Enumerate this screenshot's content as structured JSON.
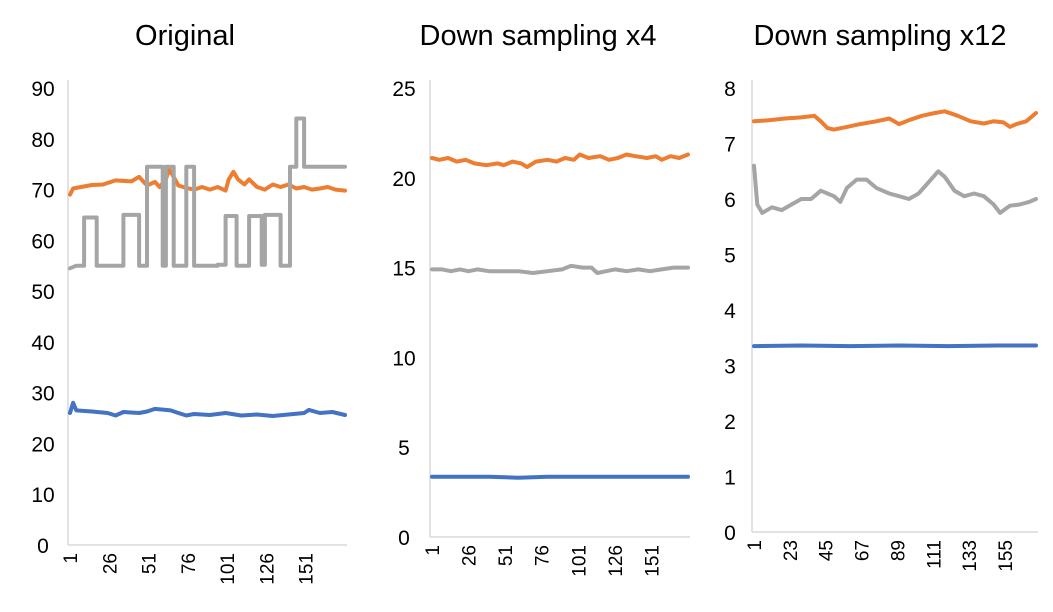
{
  "chart_data": [
    {
      "type": "line",
      "title": "Original",
      "ylim": [
        0,
        90
      ],
      "yticks": [
        0,
        10,
        20,
        30,
        40,
        50,
        60,
        70,
        80,
        90
      ],
      "x_range": [
        1,
        176
      ],
      "xticks": [
        1,
        26,
        51,
        76,
        101,
        126,
        151
      ],
      "grid": false,
      "series": [
        {
          "color": "#ED7D31",
          "points": [
            [
              1,
              69.0
            ],
            [
              3,
              70.2
            ],
            [
              8,
              70.5
            ],
            [
              15,
              70.9
            ],
            [
              22,
              71.0
            ],
            [
              30,
              71.8
            ],
            [
              40,
              71.6
            ],
            [
              45,
              72.5
            ],
            [
              50,
              70.8
            ],
            [
              55,
              71.5
            ],
            [
              58,
              70.5
            ],
            [
              62,
              72.0
            ],
            [
              64,
              74.0
            ],
            [
              67,
              72.5
            ],
            [
              70,
              70.8
            ],
            [
              75,
              70.3
            ],
            [
              80,
              70.0
            ],
            [
              85,
              70.5
            ],
            [
              90,
              70.0
            ],
            [
              95,
              70.5
            ],
            [
              100,
              69.8
            ],
            [
              102,
              72.0
            ],
            [
              105,
              73.5
            ],
            [
              108,
              72.0
            ],
            [
              112,
              71.0
            ],
            [
              115,
              72.0
            ],
            [
              120,
              70.5
            ],
            [
              125,
              70.0
            ],
            [
              130,
              71.0
            ],
            [
              135,
              70.5
            ],
            [
              140,
              71.0
            ],
            [
              145,
              70.2
            ],
            [
              150,
              70.5
            ],
            [
              155,
              70.0
            ],
            [
              160,
              70.2
            ],
            [
              165,
              70.5
            ],
            [
              170,
              70.0
            ],
            [
              176,
              69.8
            ]
          ]
        },
        {
          "color": "#A5A5A5",
          "points": [
            [
              1,
              54.5
            ],
            [
              5,
              55.0
            ],
            [
              10,
              55.0
            ],
            [
              10,
              64.5
            ],
            [
              18,
              64.5
            ],
            [
              18,
              55.0
            ],
            [
              35,
              55.0
            ],
            [
              35,
              65.0
            ],
            [
              45,
              65.0
            ],
            [
              45,
              55.0
            ],
            [
              50,
              55.0
            ],
            [
              50,
              74.5
            ],
            [
              60,
              74.5
            ],
            [
              60,
              55.0
            ],
            [
              62,
              55.0
            ],
            [
              62,
              74.5
            ],
            [
              67,
              74.5
            ],
            [
              67,
              55.0
            ],
            [
              75,
              55.0
            ],
            [
              75,
              74.5
            ],
            [
              80,
              74.5
            ],
            [
              80,
              55.0
            ],
            [
              95,
              55.0
            ],
            [
              95,
              55.2
            ],
            [
              100,
              55.2
            ],
            [
              100,
              64.8
            ],
            [
              107,
              64.8
            ],
            [
              107,
              55.0
            ],
            [
              115,
              55.0
            ],
            [
              115,
              64.8
            ],
            [
              123,
              64.8
            ],
            [
              123,
              55.2
            ],
            [
              125,
              55.2
            ],
            [
              125,
              65.0
            ],
            [
              135,
              65.0
            ],
            [
              135,
              55.0
            ],
            [
              141,
              55.0
            ],
            [
              141,
              74.5
            ],
            [
              145,
              74.5
            ],
            [
              145,
              84.0
            ],
            [
              150,
              84.0
            ],
            [
              150,
              74.5
            ],
            [
              176,
              74.5
            ]
          ]
        },
        {
          "color": "#4472C4",
          "points": [
            [
              1,
              26.0
            ],
            [
              3,
              28.0
            ],
            [
              5,
              26.5
            ],
            [
              15,
              26.3
            ],
            [
              25,
              26.0
            ],
            [
              30,
              25.5
            ],
            [
              35,
              26.2
            ],
            [
              45,
              26.0
            ],
            [
              50,
              26.3
            ],
            [
              55,
              26.8
            ],
            [
              65,
              26.5
            ],
            [
              70,
              26.0
            ],
            [
              75,
              25.5
            ],
            [
              80,
              25.8
            ],
            [
              90,
              25.6
            ],
            [
              100,
              26.0
            ],
            [
              110,
              25.5
            ],
            [
              120,
              25.7
            ],
            [
              130,
              25.4
            ],
            [
              140,
              25.7
            ],
            [
              150,
              26.0
            ],
            [
              153,
              26.6
            ],
            [
              160,
              26.0
            ],
            [
              168,
              26.2
            ],
            [
              176,
              25.6
            ]
          ]
        }
      ]
    },
    {
      "type": "line",
      "title": "Down sampling x4",
      "ylim": [
        0,
        25
      ],
      "yticks": [
        0,
        5,
        10,
        15,
        20,
        25
      ],
      "x_range": [
        1,
        176
      ],
      "xticks": [
        1,
        26,
        51,
        76,
        101,
        126,
        151
      ],
      "grid": false,
      "series": [
        {
          "color": "#ED7D31",
          "points": [
            [
              1,
              21.1
            ],
            [
              6,
              21.0
            ],
            [
              12,
              21.1
            ],
            [
              18,
              20.9
            ],
            [
              24,
              21.0
            ],
            [
              30,
              20.8
            ],
            [
              38,
              20.7
            ],
            [
              46,
              20.8
            ],
            [
              50,
              20.7
            ],
            [
              56,
              20.9
            ],
            [
              62,
              20.8
            ],
            [
              66,
              20.6
            ],
            [
              72,
              20.9
            ],
            [
              80,
              21.0
            ],
            [
              86,
              20.9
            ],
            [
              92,
              21.1
            ],
            [
              98,
              21.0
            ],
            [
              102,
              21.3
            ],
            [
              108,
              21.1
            ],
            [
              116,
              21.2
            ],
            [
              122,
              21.0
            ],
            [
              128,
              21.1
            ],
            [
              134,
              21.3
            ],
            [
              140,
              21.2
            ],
            [
              148,
              21.1
            ],
            [
              154,
              21.2
            ],
            [
              158,
              21.0
            ],
            [
              164,
              21.2
            ],
            [
              170,
              21.1
            ],
            [
              176,
              21.3
            ]
          ]
        },
        {
          "color": "#A5A5A5",
          "points": [
            [
              1,
              14.9
            ],
            [
              8,
              14.9
            ],
            [
              14,
              14.8
            ],
            [
              20,
              14.9
            ],
            [
              26,
              14.8
            ],
            [
              32,
              14.9
            ],
            [
              40,
              14.8
            ],
            [
              50,
              14.8
            ],
            [
              60,
              14.8
            ],
            [
              70,
              14.7
            ],
            [
              80,
              14.8
            ],
            [
              90,
              14.9
            ],
            [
              96,
              15.1
            ],
            [
              104,
              15.0
            ],
            [
              110,
              15.0
            ],
            [
              114,
              14.7
            ],
            [
              120,
              14.8
            ],
            [
              126,
              14.9
            ],
            [
              134,
              14.8
            ],
            [
              142,
              14.9
            ],
            [
              150,
              14.8
            ],
            [
              158,
              14.9
            ],
            [
              166,
              15.0
            ],
            [
              176,
              15.0
            ]
          ]
        },
        {
          "color": "#4472C4",
          "points": [
            [
              1,
              3.35
            ],
            [
              40,
              3.35
            ],
            [
              60,
              3.3
            ],
            [
              80,
              3.35
            ],
            [
              120,
              3.35
            ],
            [
              160,
              3.35
            ],
            [
              176,
              3.35
            ]
          ]
        }
      ]
    },
    {
      "type": "line",
      "title": "Down sampling x12",
      "ylim": [
        0,
        8
      ],
      "yticks": [
        0,
        1,
        2,
        3,
        4,
        5,
        6,
        7,
        8
      ],
      "x_range": [
        1,
        174
      ],
      "xticks": [
        1,
        23,
        45,
        67,
        89,
        111,
        133,
        155
      ],
      "grid": false,
      "series": [
        {
          "color": "#ED7D31",
          "points": [
            [
              1,
              7.4
            ],
            [
              10,
              7.42
            ],
            [
              20,
              7.45
            ],
            [
              30,
              7.47
            ],
            [
              38,
              7.5
            ],
            [
              42,
              7.4
            ],
            [
              46,
              7.28
            ],
            [
              50,
              7.25
            ],
            [
              58,
              7.3
            ],
            [
              66,
              7.35
            ],
            [
              76,
              7.4
            ],
            [
              84,
              7.45
            ],
            [
              90,
              7.35
            ],
            [
              96,
              7.42
            ],
            [
              104,
              7.5
            ],
            [
              112,
              7.55
            ],
            [
              118,
              7.58
            ],
            [
              126,
              7.5
            ],
            [
              134,
              7.4
            ],
            [
              142,
              7.36
            ],
            [
              148,
              7.4
            ],
            [
              154,
              7.38
            ],
            [
              158,
              7.3
            ],
            [
              162,
              7.35
            ],
            [
              168,
              7.4
            ],
            [
              174,
              7.55
            ]
          ]
        },
        {
          "color": "#A5A5A5",
          "points": [
            [
              1,
              6.6
            ],
            [
              3,
              5.9
            ],
            [
              6,
              5.75
            ],
            [
              12,
              5.85
            ],
            [
              18,
              5.8
            ],
            [
              24,
              5.9
            ],
            [
              30,
              6.0
            ],
            [
              36,
              6.0
            ],
            [
              42,
              6.15
            ],
            [
              50,
              6.05
            ],
            [
              54,
              5.95
            ],
            [
              58,
              6.2
            ],
            [
              64,
              6.35
            ],
            [
              70,
              6.35
            ],
            [
              76,
              6.2
            ],
            [
              84,
              6.1
            ],
            [
              90,
              6.05
            ],
            [
              96,
              6.0
            ],
            [
              102,
              6.1
            ],
            [
              108,
              6.3
            ],
            [
              114,
              6.5
            ],
            [
              118,
              6.4
            ],
            [
              124,
              6.15
            ],
            [
              130,
              6.05
            ],
            [
              136,
              6.1
            ],
            [
              142,
              6.05
            ],
            [
              148,
              5.9
            ],
            [
              152,
              5.75
            ],
            [
              158,
              5.88
            ],
            [
              164,
              5.9
            ],
            [
              170,
              5.95
            ],
            [
              174,
              6.0
            ]
          ]
        },
        {
          "color": "#4472C4",
          "points": [
            [
              1,
              3.35
            ],
            [
              30,
              3.36
            ],
            [
              60,
              3.35
            ],
            [
              90,
              3.36
            ],
            [
              120,
              3.35
            ],
            [
              150,
              3.36
            ],
            [
              174,
              3.36
            ]
          ]
        }
      ]
    }
  ]
}
